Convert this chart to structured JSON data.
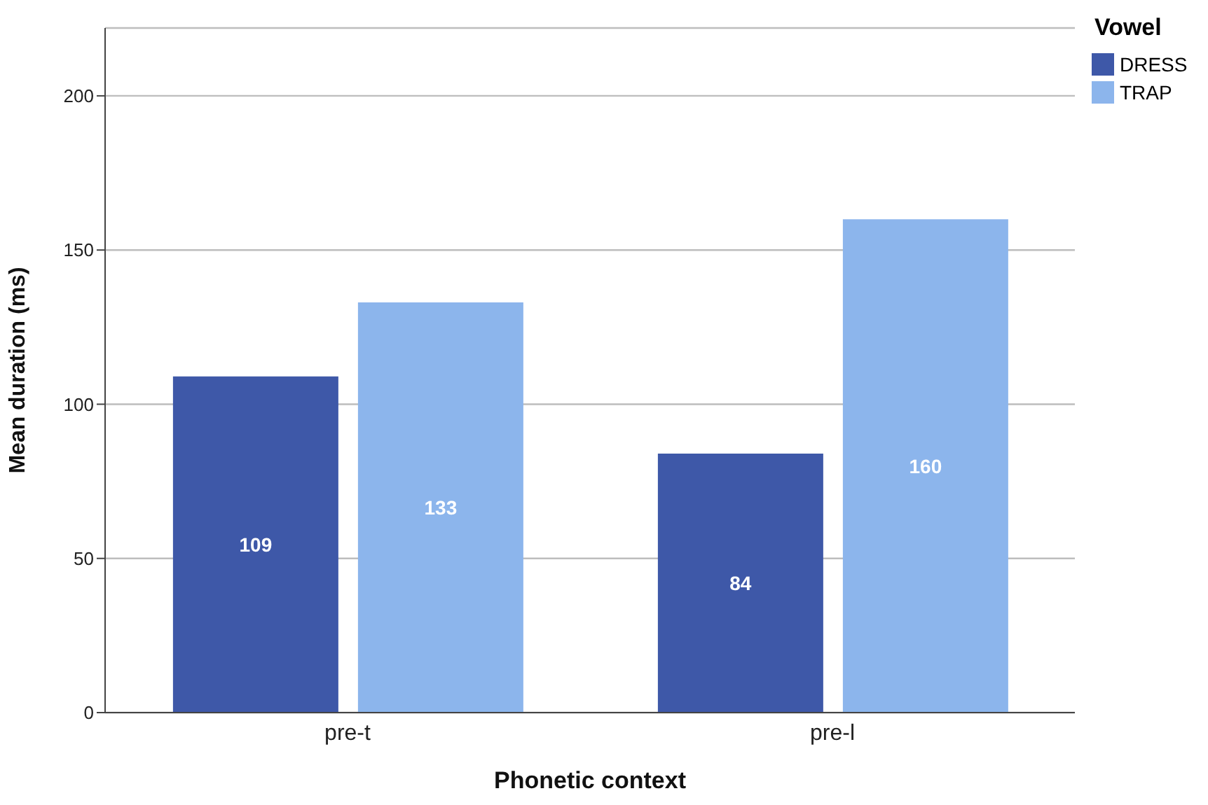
{
  "chart_data": {
    "type": "bar",
    "xlabel": "Phonetic context",
    "ylabel": "Mean duration (ms)",
    "legend_title": "Vowel",
    "categories": [
      "pre-t",
      "pre-l"
    ],
    "series": [
      {
        "name": "DRESS",
        "color": "#3e58a8",
        "values": [
          109,
          84
        ]
      },
      {
        "name": "TRAP",
        "color": "#8cb5ec",
        "values": [
          133,
          160
        ]
      }
    ],
    "ylim": [
      0,
      222
    ],
    "yticks": [
      0,
      50,
      100,
      150,
      200
    ],
    "grid": "y",
    "legend": "top right",
    "data_labels": true
  }
}
